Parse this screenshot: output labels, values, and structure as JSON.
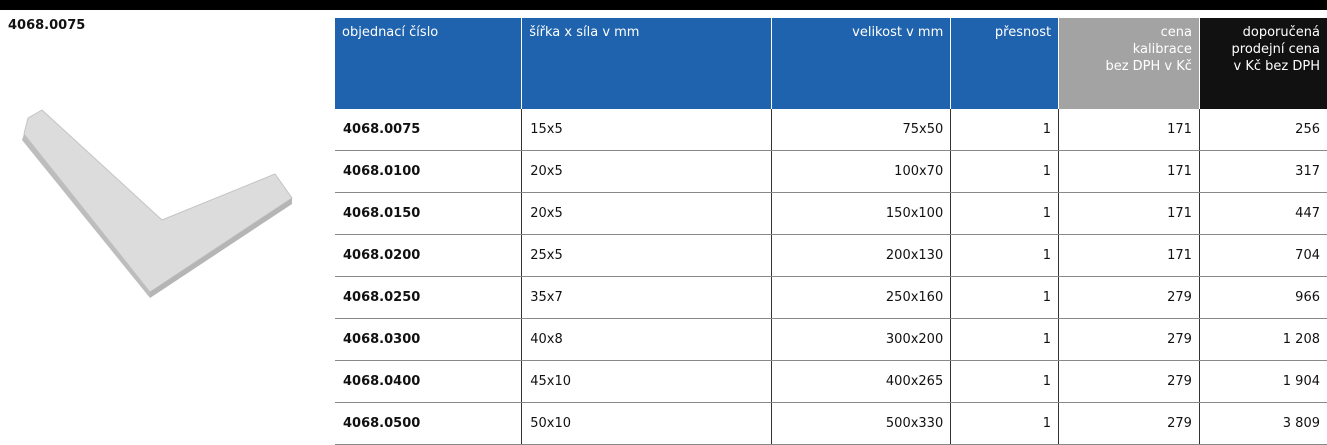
{
  "product": {
    "code": "4068.0075"
  },
  "table": {
    "headers": [
      "objednací číslo",
      "šířka x síla v mm",
      "velikost v mm",
      "přesnost",
      "cena\nkalibrace\nbez DPH v Kč",
      "doporučená\nprodejní cena\nv Kč bez DPH"
    ],
    "rows": [
      [
        "4068.0075",
        "15x5",
        "75x50",
        "1",
        "171",
        "256"
      ],
      [
        "4068.0100",
        "20x5",
        "100x70",
        "1",
        "171",
        "317"
      ],
      [
        "4068.0150",
        "20x5",
        "150x100",
        "1",
        "171",
        "447"
      ],
      [
        "4068.0200",
        "25x5",
        "200x130",
        "1",
        "171",
        "704"
      ],
      [
        "4068.0250",
        "35x7",
        "250x160",
        "1",
        "279",
        "966"
      ],
      [
        "4068.0300",
        "40x8",
        "300x200",
        "1",
        "279",
        "1 208"
      ],
      [
        "4068.0400",
        "45x10",
        "400x265",
        "1",
        "279",
        "1 904"
      ],
      [
        "4068.0500",
        "50x10",
        "500x330",
        "1",
        "279",
        "3 809"
      ]
    ]
  }
}
